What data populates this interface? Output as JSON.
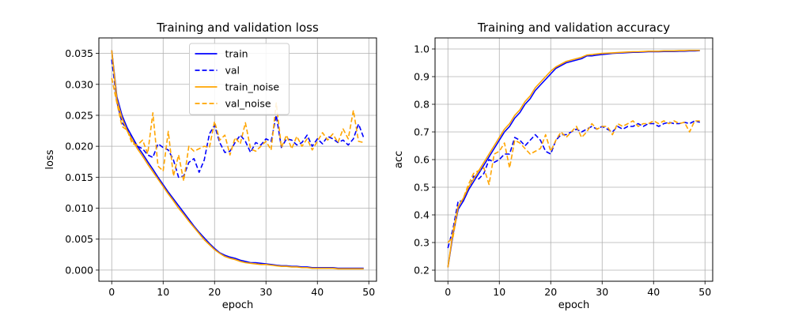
{
  "chart_data": [
    {
      "type": "line",
      "title": "Training and validation loss",
      "xlabel": "epoch",
      "ylabel": "loss",
      "xlim": [
        -2.5,
        51.5
      ],
      "ylim": [
        -0.0018,
        0.0375
      ],
      "xticks": [
        0,
        10,
        20,
        30,
        40,
        50
      ],
      "xtick_labels": [
        "0",
        "10",
        "20",
        "30",
        "40",
        "50"
      ],
      "yticks": [
        0.0,
        0.005,
        0.01,
        0.015,
        0.02,
        0.025,
        0.03,
        0.035
      ],
      "ytick_labels": [
        "0.000",
        "0.005",
        "0.010",
        "0.015",
        "0.020",
        "0.025",
        "0.030",
        "0.035"
      ],
      "grid": true,
      "legend": "upper center",
      "x": [
        0,
        1,
        2,
        3,
        4,
        5,
        6,
        7,
        8,
        9,
        10,
        11,
        12,
        13,
        14,
        15,
        16,
        17,
        18,
        19,
        20,
        21,
        22,
        23,
        24,
        25,
        26,
        27,
        28,
        29,
        30,
        31,
        32,
        33,
        34,
        35,
        36,
        37,
        38,
        39,
        40,
        41,
        42,
        43,
        44,
        45,
        46,
        47,
        48,
        49
      ],
      "series": [
        {
          "name": "train",
          "color": "#0000ff",
          "dash": "solid",
          "values": [
            0.0355,
            0.028,
            0.025,
            0.023,
            0.0215,
            0.02,
            0.0188,
            0.0175,
            0.0163,
            0.015,
            0.0138,
            0.0126,
            0.0115,
            0.0104,
            0.0093,
            0.0082,
            0.0071,
            0.0061,
            0.0052,
            0.0043,
            0.0035,
            0.0028,
            0.0024,
            0.0021,
            0.0019,
            0.0016,
            0.0014,
            0.0012,
            0.0012,
            0.0011,
            0.001,
            0.0009,
            0.0008,
            0.0007,
            0.0007,
            0.0006,
            0.0006,
            0.0005,
            0.0005,
            0.0004,
            0.0004,
            0.0004,
            0.0004,
            0.0004,
            0.0003,
            0.0003,
            0.0003,
            0.0003,
            0.0003,
            0.0003
          ]
        },
        {
          "name": "val",
          "color": "#0000ff",
          "dash": "dashed",
          "values": [
            0.034,
            0.0272,
            0.0238,
            0.0228,
            0.021,
            0.02,
            0.0196,
            0.0186,
            0.0182,
            0.0204,
            0.0198,
            0.0194,
            0.0178,
            0.015,
            0.0152,
            0.0174,
            0.018,
            0.0158,
            0.0178,
            0.022,
            0.0234,
            0.0206,
            0.019,
            0.0192,
            0.0206,
            0.0218,
            0.0208,
            0.019,
            0.0206,
            0.0202,
            0.0212,
            0.0208,
            0.025,
            0.0198,
            0.0212,
            0.021,
            0.0202,
            0.0206,
            0.0218,
            0.02,
            0.0212,
            0.0204,
            0.0216,
            0.0212,
            0.0206,
            0.021,
            0.0202,
            0.0212,
            0.0236,
            0.0214
          ]
        },
        {
          "name": "train_noise",
          "color": "#ffa500",
          "dash": "solid",
          "values": [
            0.0355,
            0.0275,
            0.0245,
            0.0225,
            0.021,
            0.0196,
            0.0184,
            0.0171,
            0.0159,
            0.0147,
            0.0135,
            0.0123,
            0.0112,
            0.01,
            0.009,
            0.0079,
            0.0069,
            0.0059,
            0.0049,
            0.0041,
            0.0033,
            0.0027,
            0.0022,
            0.0019,
            0.0017,
            0.0014,
            0.0012,
            0.0011,
            0.001,
            0.0009,
            0.0009,
            0.0008,
            0.0007,
            0.0006,
            0.0006,
            0.0005,
            0.0005,
            0.0004,
            0.0004,
            0.0003,
            0.0003,
            0.0003,
            0.0003,
            0.0003,
            0.0002,
            0.0002,
            0.0002,
            0.0002,
            0.0002,
            0.0002
          ]
        },
        {
          "name": "val_noise",
          "color": "#ffa500",
          "dash": "dashed",
          "values": [
            0.031,
            0.027,
            0.0232,
            0.0226,
            0.0204,
            0.0202,
            0.021,
            0.0188,
            0.0254,
            0.0168,
            0.016,
            0.0224,
            0.0152,
            0.0186,
            0.0144,
            0.02,
            0.0192,
            0.0196,
            0.02,
            0.0198,
            0.024,
            0.021,
            0.0218,
            0.0186,
            0.0214,
            0.0204,
            0.0238,
            0.0196,
            0.0192,
            0.02,
            0.0208,
            0.0194,
            0.027,
            0.0198,
            0.0218,
            0.0196,
            0.0216,
            0.02,
            0.0212,
            0.0194,
            0.0208,
            0.0222,
            0.021,
            0.022,
            0.0206,
            0.0228,
            0.0212,
            0.0258,
            0.0208,
            0.0206
          ]
        }
      ]
    },
    {
      "type": "line",
      "title": "Training and validation accuracy",
      "xlabel": "epoch",
      "ylabel": "acc",
      "xlim": [
        -2.5,
        51.5
      ],
      "ylim": [
        0.16,
        1.04
      ],
      "xticks": [
        0,
        10,
        20,
        30,
        40,
        50
      ],
      "xtick_labels": [
        "0",
        "10",
        "20",
        "30",
        "40",
        "50"
      ],
      "yticks": [
        0.2,
        0.3,
        0.4,
        0.5,
        0.6,
        0.7,
        0.8,
        0.9,
        1.0
      ],
      "ytick_labels": [
        "0.2",
        "0.3",
        "0.4",
        "0.5",
        "0.6",
        "0.7",
        "0.8",
        "0.9",
        "1.0"
      ],
      "grid": true,
      "legend": "none",
      "x": [
        0,
        1,
        2,
        3,
        4,
        5,
        6,
        7,
        8,
        9,
        10,
        11,
        12,
        13,
        14,
        15,
        16,
        17,
        18,
        19,
        20,
        21,
        22,
        23,
        24,
        25,
        26,
        27,
        28,
        29,
        30,
        31,
        32,
        33,
        34,
        35,
        36,
        37,
        38,
        39,
        40,
        41,
        42,
        43,
        44,
        45,
        46,
        47,
        48,
        49
      ],
      "series": [
        {
          "name": "train",
          "color": "#0000ff",
          "dash": "solid",
          "values": [
            0.21,
            0.33,
            0.42,
            0.45,
            0.49,
            0.52,
            0.55,
            0.58,
            0.61,
            0.64,
            0.67,
            0.7,
            0.72,
            0.75,
            0.77,
            0.8,
            0.82,
            0.85,
            0.87,
            0.89,
            0.91,
            0.93,
            0.94,
            0.95,
            0.955,
            0.96,
            0.965,
            0.975,
            0.975,
            0.978,
            0.98,
            0.982,
            0.984,
            0.985,
            0.986,
            0.987,
            0.988,
            0.988,
            0.989,
            0.99,
            0.99,
            0.99,
            0.991,
            0.991,
            0.991,
            0.992,
            0.992,
            0.993,
            0.993,
            0.994
          ]
        },
        {
          "name": "val",
          "color": "#0000ff",
          "dash": "dashed",
          "values": [
            0.28,
            0.35,
            0.45,
            0.45,
            0.49,
            0.54,
            0.53,
            0.55,
            0.6,
            0.59,
            0.6,
            0.62,
            0.62,
            0.68,
            0.67,
            0.65,
            0.67,
            0.69,
            0.67,
            0.63,
            0.62,
            0.67,
            0.69,
            0.69,
            0.7,
            0.71,
            0.7,
            0.71,
            0.72,
            0.71,
            0.72,
            0.71,
            0.7,
            0.72,
            0.71,
            0.72,
            0.72,
            0.73,
            0.72,
            0.73,
            0.73,
            0.72,
            0.73,
            0.735,
            0.73,
            0.73,
            0.735,
            0.73,
            0.74,
            0.735
          ]
        },
        {
          "name": "train_noise",
          "color": "#ffa500",
          "dash": "solid",
          "values": [
            0.21,
            0.34,
            0.43,
            0.46,
            0.5,
            0.53,
            0.56,
            0.59,
            0.62,
            0.65,
            0.68,
            0.71,
            0.73,
            0.76,
            0.78,
            0.81,
            0.83,
            0.86,
            0.88,
            0.9,
            0.92,
            0.935,
            0.945,
            0.955,
            0.96,
            0.965,
            0.97,
            0.978,
            0.98,
            0.982,
            0.984,
            0.985,
            0.986,
            0.987,
            0.988,
            0.989,
            0.99,
            0.99,
            0.991,
            0.992,
            0.992,
            0.992,
            0.993,
            0.993,
            0.993,
            0.994,
            0.994,
            0.995,
            0.995,
            0.995
          ]
        },
        {
          "name": "val_noise",
          "color": "#ffa500",
          "dash": "dashed",
          "values": [
            0.3,
            0.32,
            0.43,
            0.46,
            0.51,
            0.55,
            0.56,
            0.57,
            0.51,
            0.62,
            0.63,
            0.66,
            0.57,
            0.67,
            0.66,
            0.64,
            0.62,
            0.63,
            0.64,
            0.69,
            0.63,
            0.67,
            0.7,
            0.68,
            0.7,
            0.72,
            0.68,
            0.7,
            0.73,
            0.71,
            0.72,
            0.72,
            0.69,
            0.73,
            0.72,
            0.73,
            0.74,
            0.72,
            0.73,
            0.73,
            0.74,
            0.73,
            0.74,
            0.73,
            0.74,
            0.73,
            0.735,
            0.7,
            0.74,
            0.74
          ]
        }
      ]
    }
  ]
}
